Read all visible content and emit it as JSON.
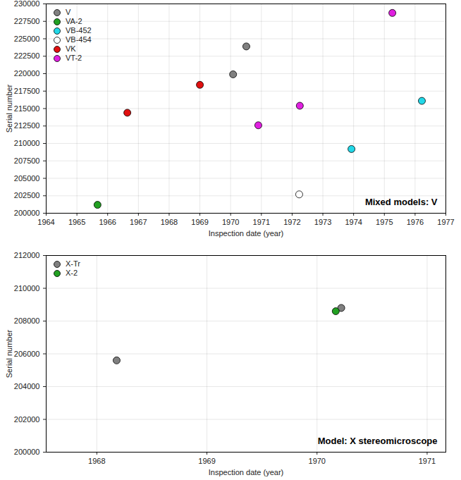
{
  "chart_data": [
    {
      "type": "scatter",
      "xlabel": "Inspection date (year)",
      "ylabel": "Serial number",
      "annotation": "Mixed models: V",
      "xlim": [
        1964,
        1977
      ],
      "xticks": [
        1964,
        1965,
        1966,
        1967,
        1968,
        1969,
        1970,
        1971,
        1972,
        1973,
        1974,
        1975,
        1976,
        1977
      ],
      "ylim": [
        200000,
        230000
      ],
      "yticks": [
        200000,
        202500,
        205000,
        207500,
        210000,
        212500,
        215000,
        217500,
        220000,
        222500,
        225000,
        227500,
        230000
      ],
      "grid": true,
      "legend": "upper left",
      "marker": "circle",
      "series": [
        {
          "name": "V",
          "color": "#808080",
          "x": [
            1970.08,
            1970.51
          ],
          "values": [
            219900,
            223900
          ]
        },
        {
          "name": "VA-2",
          "color": "#22a022",
          "x": [
            1965.67
          ],
          "values": [
            201200
          ]
        },
        {
          "name": "VB-452",
          "color": "#22d8e8",
          "x": [
            1973.93,
            1976.22
          ],
          "values": [
            209200,
            216100
          ]
        },
        {
          "name": "VB-454",
          "color": "#ffffff",
          "x": [
            1972.23
          ],
          "values": [
            202700
          ]
        },
        {
          "name": "VK",
          "color": "#e01010",
          "x": [
            1966.64,
            1969.0
          ],
          "values": [
            214400,
            218400
          ]
        },
        {
          "name": "VT-2",
          "color": "#e020e0",
          "x": [
            1970.9,
            1972.25,
            1975.26
          ],
          "values": [
            212600,
            215400,
            228700
          ]
        }
      ]
    },
    {
      "type": "scatter",
      "xlabel": "Inspection date (year)",
      "ylabel": "Serial number",
      "annotation": "Model: X stereomicroscope",
      "xlim": [
        1967.54,
        1971.17
      ],
      "xticks": [
        1968,
        1969,
        1970,
        1971
      ],
      "ylim": [
        200000,
        212000
      ],
      "yticks": [
        200000,
        202000,
        204000,
        206000,
        208000,
        210000,
        212000
      ],
      "grid": true,
      "legend": "upper left",
      "marker": "circle",
      "series": [
        {
          "name": "X-Tr",
          "color": "#808080",
          "x": [
            1968.18,
            1970.22
          ],
          "values": [
            205600,
            208800
          ]
        },
        {
          "name": "X-2",
          "color": "#22a022",
          "x": [
            1970.17
          ],
          "values": [
            208600
          ]
        }
      ]
    }
  ]
}
